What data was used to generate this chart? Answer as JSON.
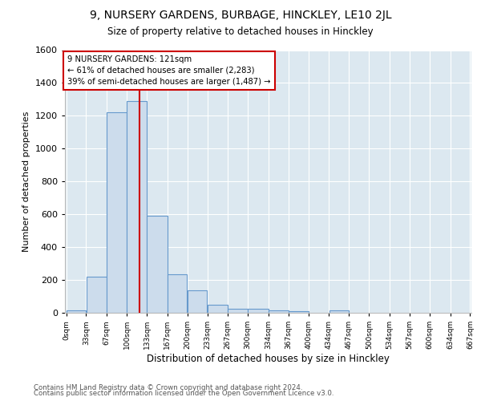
{
  "title1": "9, NURSERY GARDENS, BURBAGE, HINCKLEY, LE10 2JL",
  "title2": "Size of property relative to detached houses in Hinckley",
  "xlabel": "Distribution of detached houses by size in Hinckley",
  "ylabel": "Number of detached properties",
  "bin_edges": [
    0,
    33,
    67,
    100,
    133,
    167,
    200,
    233,
    267,
    300,
    334,
    367,
    400,
    434,
    467,
    500,
    534,
    567,
    600,
    634,
    667
  ],
  "bar_heights": [
    15,
    220,
    1220,
    1290,
    590,
    235,
    135,
    50,
    25,
    25,
    15,
    10,
    0,
    15,
    0,
    0,
    0,
    0,
    0,
    0
  ],
  "bar_color": "#ccdcec",
  "bar_edge_color": "#6699cc",
  "red_line_x": 121,
  "red_line_color": "#cc0000",
  "annotation_line1": "9 NURSERY GARDENS: 121sqm",
  "annotation_line2": "← 61% of detached houses are smaller (2,283)",
  "annotation_line3": "39% of semi-detached houses are larger (1,487) →",
  "annotation_box_facecolor": "#ffffff",
  "annotation_box_edgecolor": "#cc0000",
  "ylim": [
    0,
    1600
  ],
  "yticks": [
    0,
    200,
    400,
    600,
    800,
    1000,
    1200,
    1400,
    1600
  ],
  "background_color": "#dce8f0",
  "footer1": "Contains HM Land Registry data © Crown copyright and database right 2024.",
  "footer2": "Contains public sector information licensed under the Open Government Licence v3.0."
}
